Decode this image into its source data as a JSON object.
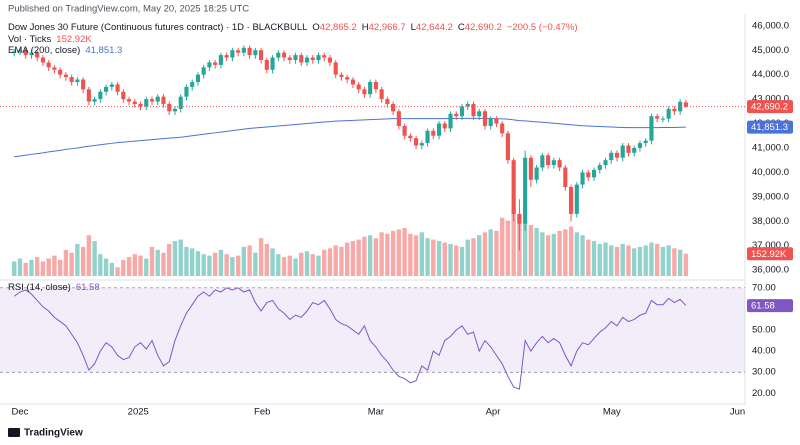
{
  "header": {
    "published": "Published on TradingView.com, May 20, 2025 18:25 UTC",
    "logo": "TradingView"
  },
  "chart_data": [
    {
      "type": "candlestick",
      "title": "Dow Jones 30 Future (Continuous futures contract) · 1D · BLACKBULL",
      "up_color": "#26a69a",
      "down_color": "#ef5350",
      "open": [
        44900,
        44950,
        45000,
        44800,
        44900,
        44700,
        44500,
        44300,
        44200,
        44000,
        43900,
        43700,
        43800,
        43400,
        42900,
        43000,
        43300,
        43500,
        43600,
        43300,
        43000,
        42900,
        42800,
        42700,
        43000,
        42900,
        43100,
        42800,
        42500,
        42600,
        43100,
        43500,
        43700,
        44000,
        44300,
        44500,
        44400,
        44800,
        44700,
        45000,
        44900,
        45100,
        44800,
        45000,
        44600,
        44200,
        44700,
        44900,
        44700,
        44600,
        44800,
        44500,
        44700,
        44600,
        44800,
        44700,
        44500,
        44000,
        43900,
        43800,
        43600,
        43400,
        43200,
        43700,
        43400,
        43000,
        42800,
        42500,
        41900,
        41500,
        41400,
        41100,
        41200,
        41700,
        41500,
        42000,
        41800,
        42400,
        42300,
        42700,
        42800,
        42300,
        42500,
        41900,
        42200,
        42000,
        41600,
        40500,
        38300,
        37900,
        40600,
        39700,
        40200,
        40700,
        40300,
        40500,
        40200,
        39400,
        38300,
        39500,
        40000,
        39800,
        40100,
        40300,
        40500,
        40800,
        40600,
        41100,
        40800,
        41000,
        41200,
        41300,
        42300,
        42200,
        42200,
        42600,
        42500,
        42865.2
      ],
      "high": [
        45050,
        45100,
        45100,
        45000,
        45000,
        44800,
        44600,
        44400,
        44300,
        44100,
        44000,
        43900,
        43900,
        43500,
        43100,
        43400,
        43600,
        43700,
        43700,
        43400,
        43100,
        43000,
        42900,
        43100,
        43100,
        43200,
        43200,
        42900,
        42700,
        43200,
        43600,
        43800,
        44100,
        44400,
        44600,
        44600,
        44900,
        44900,
        45100,
        45100,
        45200,
        45200,
        45100,
        45100,
        44700,
        44800,
        45000,
        45000,
        44800,
        44900,
        44900,
        44800,
        44800,
        44900,
        44900,
        44800,
        44600,
        44100,
        44000,
        43900,
        43700,
        43500,
        43800,
        43800,
        43500,
        43100,
        42900,
        42600,
        42000,
        41600,
        41500,
        41300,
        41800,
        41800,
        42100,
        42100,
        42500,
        42500,
        42800,
        42900,
        42900,
        42600,
        42600,
        42300,
        42300,
        42100,
        41700,
        40600,
        38900,
        40900,
        40700,
        40300,
        40800,
        40800,
        40600,
        40600,
        40300,
        39500,
        39600,
        40100,
        40100,
        40200,
        40400,
        40600,
        40900,
        40900,
        41200,
        41200,
        41100,
        41300,
        41400,
        42400,
        42400,
        42300,
        42700,
        42700,
        43000,
        42966.7
      ],
      "low": [
        44750,
        44800,
        44650,
        44650,
        44550,
        44350,
        44150,
        44050,
        43850,
        43750,
        43550,
        43550,
        43250,
        42750,
        42750,
        42850,
        43150,
        43350,
        43150,
        42850,
        42750,
        42650,
        42550,
        42550,
        42750,
        42750,
        42650,
        42350,
        42350,
        42450,
        42950,
        43350,
        43550,
        43850,
        44150,
        44250,
        44250,
        44550,
        44550,
        44750,
        44750,
        44650,
        44650,
        44450,
        44050,
        44050,
        44550,
        44550,
        44450,
        44450,
        44350,
        44350,
        44450,
        44450,
        44550,
        44350,
        43850,
        43750,
        43650,
        43450,
        43250,
        43050,
        43050,
        43250,
        42850,
        42650,
        42350,
        41750,
        41350,
        41250,
        40950,
        40950,
        41050,
        41350,
        41350,
        41650,
        41650,
        42150,
        42150,
        42550,
        42150,
        42150,
        41750,
        41750,
        41850,
        41450,
        40350,
        38000,
        36800,
        37600,
        39400,
        39550,
        40050,
        40150,
        40150,
        40050,
        39250,
        38000,
        38150,
        39350,
        39650,
        39650,
        39950,
        40150,
        40350,
        40450,
        40450,
        40650,
        40650,
        40850,
        41050,
        41150,
        42050,
        42050,
        42050,
        42350,
        42350,
        42644.2
      ],
      "close": [
        44950,
        45000,
        44800,
        44900,
        44700,
        44500,
        44300,
        44200,
        44000,
        43900,
        43700,
        43800,
        43400,
        42900,
        43000,
        43300,
        43500,
        43600,
        43300,
        43000,
        42900,
        42800,
        42700,
        43000,
        42900,
        43100,
        42800,
        42500,
        42600,
        43100,
        43500,
        43700,
        44000,
        44300,
        44500,
        44400,
        44800,
        44700,
        45000,
        44900,
        45100,
        44800,
        45000,
        44600,
        44200,
        44700,
        44900,
        44700,
        44600,
        44800,
        44500,
        44700,
        44600,
        44800,
        44700,
        44500,
        44000,
        43900,
        43800,
        43600,
        43400,
        43200,
        43700,
        43400,
        43000,
        42800,
        42500,
        41900,
        41500,
        41400,
        41100,
        41200,
        41700,
        41500,
        42000,
        41800,
        42400,
        42300,
        42700,
        42800,
        42300,
        42500,
        41900,
        42200,
        42000,
        41600,
        40500,
        38300,
        37900,
        40600,
        39700,
        40200,
        40700,
        40300,
        40500,
        40200,
        39400,
        38300,
        39500,
        40000,
        39800,
        40100,
        40300,
        40500,
        40800,
        40600,
        41100,
        40800,
        41000,
        41200,
        41300,
        42300,
        42200,
        42200,
        42600,
        42500,
        42890.7,
        42690.2
      ],
      "ohlc_letters": [
        "O",
        "H",
        "L",
        "C"
      ],
      "last_labels": {
        "open": "42,865.2",
        "high": "42,966.7",
        "low": "42,644.2",
        "close": "42,690.2"
      },
      "change_label": "−200.5 (−0.47%)",
      "ylim": [
        35758,
        46484
      ],
      "yticks": [
        {
          "value": 36000,
          "label": "36,000.0"
        },
        {
          "value": 37000,
          "label": "37,000.0"
        },
        {
          "value": 38000,
          "label": "38,000.0"
        },
        {
          "value": 39000,
          "label": "39,000.0"
        },
        {
          "value": 40000,
          "label": "40,000.0"
        },
        {
          "value": 41000,
          "label": "41,000.0"
        },
        {
          "value": 42000,
          "label": "42,000.0"
        },
        {
          "value": 43000,
          "label": "43,000.0"
        },
        {
          "value": 44000,
          "label": "44,000.0"
        },
        {
          "value": 45000,
          "label": "45,000.0"
        },
        {
          "value": 46000,
          "label": "46,000.0"
        }
      ],
      "xlim": [
        -2.48,
        127.3
      ],
      "xticks": [
        {
          "value": 1,
          "label": "Dec"
        },
        {
          "value": 21.6,
          "label": "2025"
        },
        {
          "value": 43.2,
          "label": "Feb"
        },
        {
          "value": 63,
          "label": "Mar"
        },
        {
          "value": 83.4,
          "label": "Apr"
        },
        {
          "value": 104.1,
          "label": "May"
        },
        {
          "value": 126,
          "label": "Jun"
        }
      ],
      "volume": {
        "name": "Vol · Ticks",
        "vlim": [
          0,
          1800
        ],
        "values": [
          100,
          120,
          90,
          110,
          130,
          100,
          120,
          140,
          110,
          180,
          160,
          220,
          200,
          280,
          240,
          150,
          120,
          90,
          60,
          110,
          130,
          150,
          140,
          120,
          200,
          180,
          160,
          220,
          240,
          250,
          200,
          190,
          170,
          150,
          140,
          160,
          180,
          150,
          130,
          140,
          200,
          210,
          160,
          260,
          220,
          190,
          150,
          130,
          140,
          120,
          160,
          170,
          150,
          140,
          180,
          190,
          210,
          200,
          230,
          240,
          250,
          270,
          280,
          260,
          300,
          290,
          310,
          320,
          330,
          290,
          280,
          300,
          260,
          250,
          240,
          230,
          220,
          210,
          200,
          250,
          260,
          280,
          300,
          320,
          310,
          400,
          380,
          460,
          410,
          380,
          350,
          330,
          300,
          280,
          290,
          310,
          320,
          340,
          300,
          280,
          250,
          240,
          220,
          230,
          210,
          200,
          220,
          210,
          190,
          200,
          210,
          230,
          220,
          200,
          210,
          190,
          180,
          152.92
        ],
        "value_label": "152.92K"
      },
      "ema": {
        "name": "EMA (200, close)",
        "color": "#4a72d8",
        "value_label": "41,851.3",
        "values": [
          40640,
          40670,
          40700,
          40740,
          40770,
          40800,
          40840,
          40870,
          40900,
          40940,
          40970,
          41000,
          41040,
          41070,
          41100,
          41130,
          41160,
          41190,
          41220,
          41240,
          41260,
          41280,
          41300,
          41320,
          41340,
          41360,
          41380,
          41400,
          41420,
          41440,
          41470,
          41500,
          41530,
          41560,
          41590,
          41620,
          41650,
          41680,
          41710,
          41740,
          41770,
          41800,
          41820,
          41840,
          41860,
          41880,
          41900,
          41920,
          41940,
          41960,
          41980,
          42000,
          42020,
          42040,
          42060,
          42080,
          42100,
          42110,
          42120,
          42130,
          42140,
          42150,
          42160,
          42170,
          42180,
          42190,
          42200,
          42200,
          42200,
          42200,
          42200,
          42200,
          42200,
          42200,
          42200,
          42200,
          42200,
          42210,
          42210,
          42210,
          42210,
          42210,
          42210,
          42200,
          42200,
          42190,
          42180,
          42150,
          42120,
          42110,
          42090,
          42070,
          42050,
          42030,
          42010,
          41990,
          41970,
          41950,
          41930,
          41910,
          41900,
          41890,
          41880,
          41870,
          41860,
          41850,
          41840,
          41830,
          41830,
          41830,
          41830,
          41830,
          41830,
          41840,
          41840,
          41840,
          41850,
          41851.3
        ]
      }
    },
    {
      "type": "line",
      "title": "RSI (14, close)",
      "color": "#7e57c2",
      "values": [
        66,
        68,
        69,
        67,
        64,
        61,
        59,
        56,
        54,
        52,
        48,
        44,
        38,
        31,
        34,
        40,
        44,
        42,
        38,
        36,
        37,
        42,
        44,
        41,
        45,
        38,
        33,
        35,
        45,
        52,
        58,
        62,
        66,
        68,
        66,
        69,
        68,
        70,
        69,
        70,
        68,
        69,
        63,
        59,
        63,
        64,
        60,
        58,
        55,
        57,
        56,
        59,
        63,
        62,
        64,
        60,
        55,
        53,
        52,
        50,
        48,
        52,
        45,
        42,
        38,
        35,
        31,
        28,
        27,
        25,
        26,
        33,
        31,
        40,
        38,
        45,
        47,
        50,
        52,
        48,
        49,
        40,
        45,
        42,
        38,
        34,
        28,
        23,
        22,
        45,
        40,
        44,
        47,
        44,
        46,
        44,
        38,
        33,
        40,
        44,
        43,
        46,
        49,
        51,
        54,
        52,
        56,
        54,
        55,
        57,
        58,
        64,
        62,
        62,
        65,
        63,
        64.5,
        61.58
      ],
      "band": [
        30,
        70
      ],
      "ylim": [
        14.95,
        72.75
      ],
      "yticks": [
        {
          "value": 20,
          "label": "20.00"
        },
        {
          "value": 30,
          "label": "30.00"
        },
        {
          "value": 40,
          "label": "40.00"
        },
        {
          "value": 50,
          "label": "50.00"
        },
        {
          "value": 60,
          "label": "60.00"
        },
        {
          "value": 70,
          "label": "70.00"
        }
      ]
    }
  ]
}
